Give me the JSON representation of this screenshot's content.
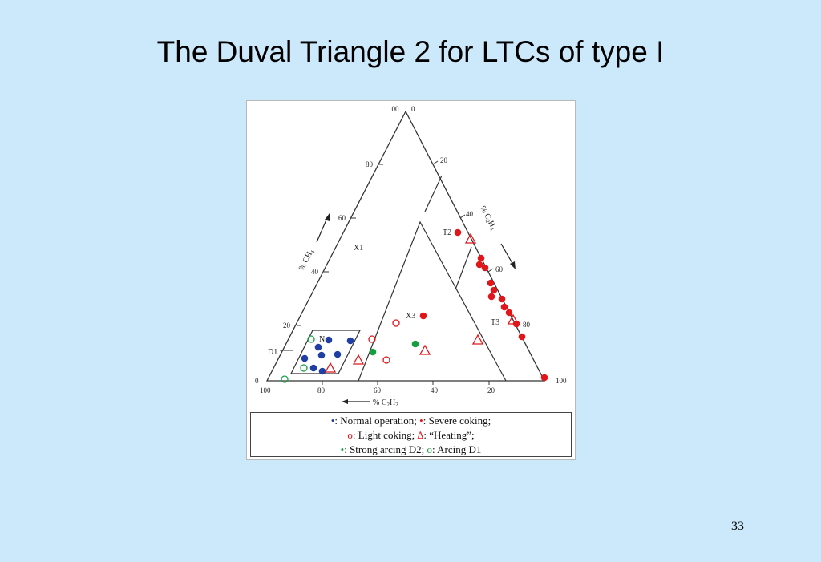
{
  "slide": {
    "title": "The Duval Triangle 2 for LTCs of type I",
    "page_number": "33"
  },
  "axes": {
    "ch4_label": "% CH",
    "ch4_sub": "4",
    "c2h4_label": "% C",
    "c2h4_sub1": "2",
    "c2h4_mid": "H",
    "c2h4_sub2": "4",
    "c2h2_label": "% C",
    "c2h2_sub1": "2",
    "c2h2_mid": "H",
    "c2h2_sub2": "2",
    "left_ticks": [
      "100",
      "80",
      "60",
      "40",
      "20",
      "0"
    ],
    "right_ticks": [
      "0",
      "20",
      "40",
      "60",
      "80",
      "100"
    ],
    "bottom_ticks": [
      "100",
      "80",
      "60",
      "40",
      "20"
    ]
  },
  "zones": {
    "x1": "X1",
    "x3": "X3",
    "n": "N",
    "d1": "D1",
    "t2": "T2",
    "t3": "T3"
  },
  "points": {
    "normal_operation": [
      [
        379,
        446
      ],
      [
        396,
        432
      ],
      [
        409,
        423
      ],
      [
        400,
        442
      ],
      [
        420,
        441
      ],
      [
        390,
        458
      ],
      [
        401,
        462
      ],
      [
        436,
        424
      ]
    ],
    "severe_coking": [
      [
        570,
        289
      ],
      [
        599,
        321
      ],
      [
        597,
        329
      ],
      [
        604,
        333
      ],
      [
        611,
        352
      ],
      [
        615,
        361
      ],
      [
        625,
        372
      ],
      [
        612,
        369
      ],
      [
        628,
        382
      ],
      [
        634,
        389
      ],
      [
        643,
        403
      ],
      [
        650,
        419
      ],
      [
        527,
        393
      ],
      [
        678,
        470
      ]
    ],
    "light_coking": [
      [
        493,
        402
      ],
      [
        463,
        422
      ],
      [
        481,
        448
      ]
    ],
    "heating": [
      [
        586,
        297
      ],
      [
        595,
        423
      ],
      [
        639,
        398
      ],
      [
        529,
        436
      ],
      [
        446,
        448
      ],
      [
        411,
        458
      ]
    ],
    "strong_arcing_d2": [
      [
        464,
        438
      ],
      [
        517,
        428
      ]
    ],
    "arcing_d1": [
      [
        387,
        422
      ],
      [
        378,
        458
      ],
      [
        354,
        472
      ]
    ]
  },
  "legend": {
    "line1": [
      {
        "symbol": "•",
        "color": "#1f3fa3",
        "text": ": Normal operation; "
      },
      {
        "symbol": "•",
        "color": "#e0161b",
        "text": ": Severe coking;"
      }
    ],
    "line2": [
      {
        "symbol": "o",
        "color": "#e0161b",
        "text": ": Light coking; "
      },
      {
        "symbol": "∆",
        "color": "#e0161b",
        "text": ": “Heating”;"
      }
    ],
    "line3": [
      {
        "symbol": "•",
        "color": "#14a040",
        "text": ": Strong arcing D2; "
      },
      {
        "symbol": "o",
        "color": "#14a040",
        "text": ": Arcing D1"
      }
    ]
  },
  "colors": {
    "background": "#cce8fb",
    "blue": "#1f3fa3",
    "red": "#e0161b",
    "green": "#14a040"
  }
}
